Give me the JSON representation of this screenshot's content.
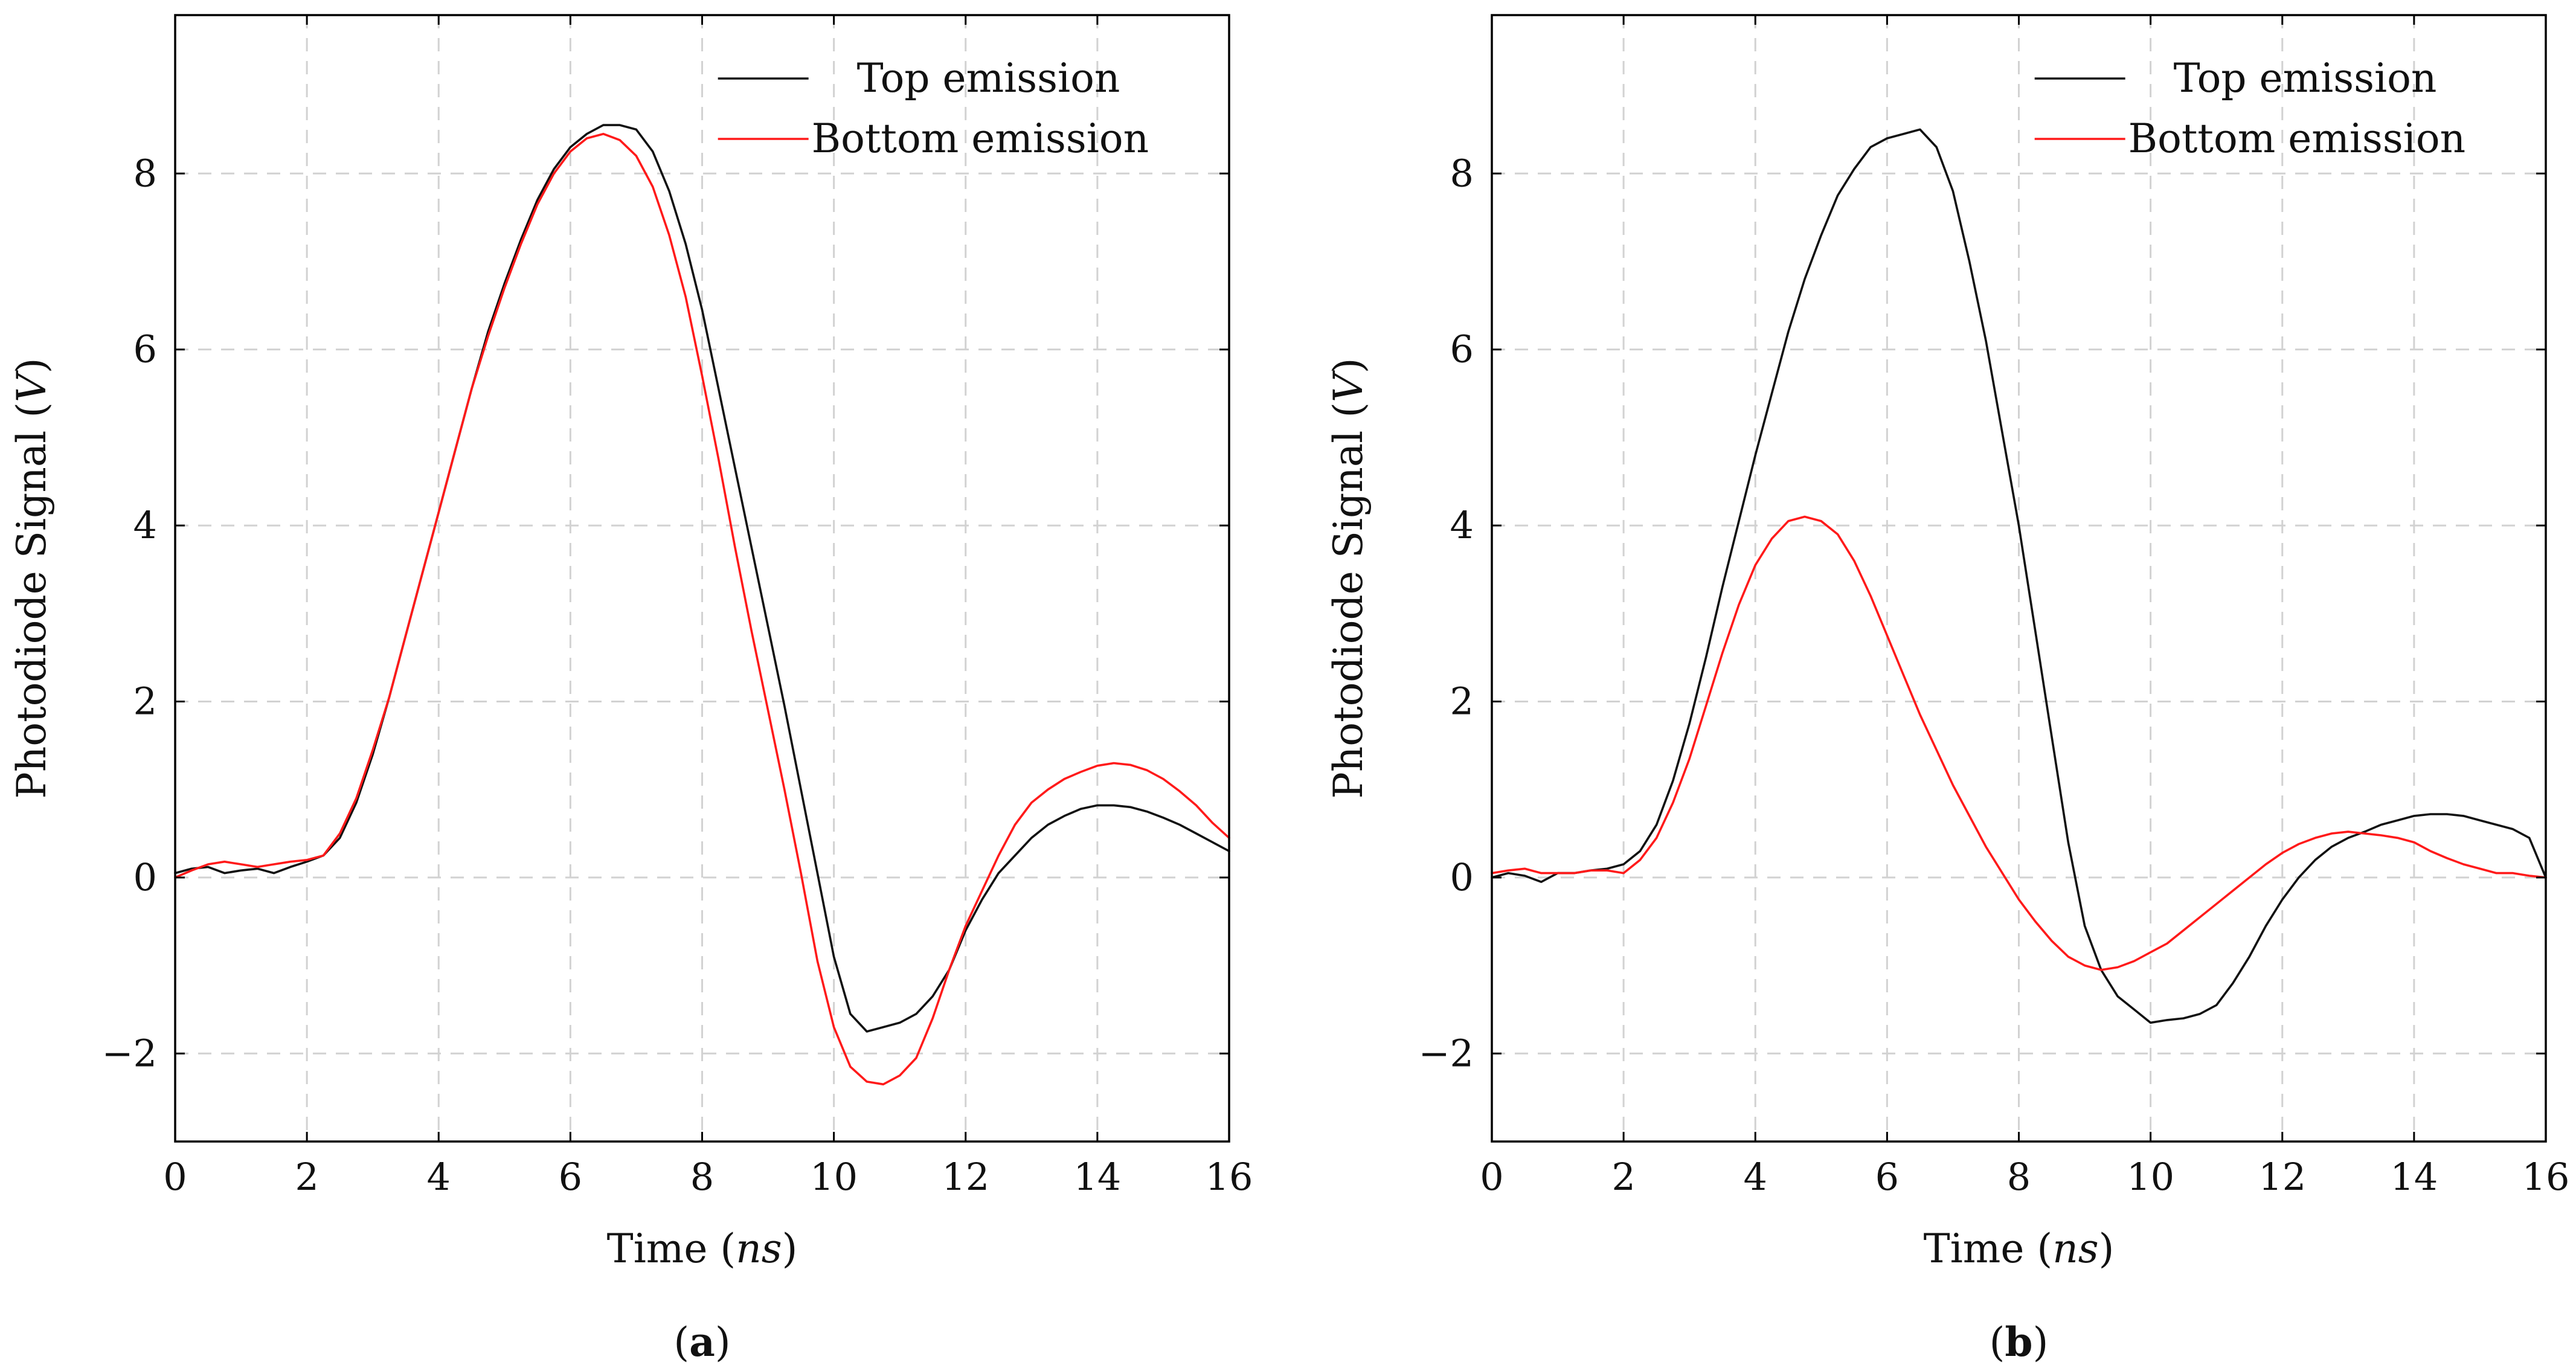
{
  "colors": {
    "top_emission": "#111111",
    "bottom_emission": "#ff1a1a",
    "grid": "#d2d2d2"
  },
  "chart_data": [
    {
      "type": "line",
      "panel_label": "a",
      "xlabel_prefix": "Time (",
      "xlabel_unit": "ns",
      "xlabel_suffix": ")",
      "ylabel_prefix": "Photodiode Signal (",
      "ylabel_unit": "V",
      "ylabel_suffix": ")",
      "xlim": [
        0,
        16
      ],
      "ylim": [
        -3,
        9.8
      ],
      "xticks": [
        0,
        2,
        4,
        6,
        8,
        10,
        12,
        14,
        16
      ],
      "yticks": [
        -2,
        0,
        2,
        4,
        6,
        8
      ],
      "ytick_labels": [
        "−2",
        "0",
        "2",
        "4",
        "6",
        "8"
      ],
      "grid": true,
      "legend_position": "top-right",
      "series": [
        {
          "name": "Top emission",
          "color": "#111111",
          "x": [
            0,
            0.25,
            0.5,
            0.75,
            1.0,
            1.25,
            1.5,
            1.75,
            2.0,
            2.25,
            2.5,
            2.75,
            3.0,
            3.25,
            3.5,
            3.75,
            4.0,
            4.25,
            4.5,
            4.75,
            5.0,
            5.25,
            5.5,
            5.75,
            6.0,
            6.25,
            6.5,
            6.75,
            7.0,
            7.25,
            7.5,
            7.75,
            8.0,
            8.25,
            8.5,
            8.75,
            9.0,
            9.25,
            9.5,
            9.75,
            10.0,
            10.25,
            10.5,
            10.75,
            11.0,
            11.25,
            11.5,
            11.75,
            12.0,
            12.25,
            12.5,
            12.75,
            13.0,
            13.25,
            13.5,
            13.75,
            14.0,
            14.25,
            14.5,
            14.75,
            15.0,
            15.25,
            15.5,
            15.75,
            16.0
          ],
          "y": [
            0.05,
            0.1,
            0.12,
            0.05,
            0.08,
            0.1,
            0.05,
            0.12,
            0.18,
            0.25,
            0.45,
            0.85,
            1.4,
            2.05,
            2.75,
            3.45,
            4.15,
            4.85,
            5.55,
            6.2,
            6.75,
            7.25,
            7.7,
            8.05,
            8.3,
            8.45,
            8.55,
            8.55,
            8.5,
            8.25,
            7.8,
            7.2,
            6.45,
            5.55,
            4.65,
            3.75,
            2.85,
            1.95,
            1.0,
            0.05,
            -0.9,
            -1.55,
            -1.75,
            -1.7,
            -1.65,
            -1.55,
            -1.35,
            -1.05,
            -0.6,
            -0.25,
            0.05,
            0.25,
            0.45,
            0.6,
            0.7,
            0.78,
            0.82,
            0.82,
            0.8,
            0.75,
            0.68,
            0.6,
            0.5,
            0.4,
            0.3
          ]
        },
        {
          "name": "Bottom emission",
          "color": "#ff1a1a",
          "x": [
            0,
            0.25,
            0.5,
            0.75,
            1.0,
            1.25,
            1.5,
            1.75,
            2.0,
            2.25,
            2.5,
            2.75,
            3.0,
            3.25,
            3.5,
            3.75,
            4.0,
            4.25,
            4.5,
            4.75,
            5.0,
            5.25,
            5.5,
            5.75,
            6.0,
            6.25,
            6.5,
            6.75,
            7.0,
            7.25,
            7.5,
            7.75,
            8.0,
            8.25,
            8.5,
            8.75,
            9.0,
            9.25,
            9.5,
            9.75,
            10.0,
            10.25,
            10.5,
            10.75,
            11.0,
            11.25,
            11.5,
            11.75,
            12.0,
            12.25,
            12.5,
            12.75,
            13.0,
            13.25,
            13.5,
            13.75,
            14.0,
            14.25,
            14.5,
            14.75,
            15.0,
            15.25,
            15.5,
            15.75,
            16.0
          ],
          "y": [
            0.0,
            0.08,
            0.15,
            0.18,
            0.15,
            0.12,
            0.15,
            0.18,
            0.2,
            0.25,
            0.5,
            0.9,
            1.45,
            2.05,
            2.75,
            3.45,
            4.15,
            4.85,
            5.55,
            6.15,
            6.7,
            7.2,
            7.65,
            8.0,
            8.25,
            8.4,
            8.45,
            8.38,
            8.2,
            7.85,
            7.3,
            6.6,
            5.7,
            4.75,
            3.75,
            2.8,
            1.9,
            1.0,
            0.05,
            -0.95,
            -1.7,
            -2.15,
            -2.32,
            -2.35,
            -2.25,
            -2.05,
            -1.6,
            -1.05,
            -0.55,
            -0.15,
            0.25,
            0.6,
            0.85,
            1.0,
            1.12,
            1.2,
            1.27,
            1.3,
            1.28,
            1.22,
            1.12,
            0.98,
            0.82,
            0.62,
            0.45
          ]
        }
      ]
    },
    {
      "type": "line",
      "panel_label": "b",
      "xlabel_prefix": "Time (",
      "xlabel_unit": "ns",
      "xlabel_suffix": ")",
      "ylabel_prefix": "Photodiode Signal (",
      "ylabel_unit": "V",
      "ylabel_suffix": ")",
      "xlim": [
        0,
        16
      ],
      "ylim": [
        -3,
        9.8
      ],
      "xticks": [
        0,
        2,
        4,
        6,
        8,
        10,
        12,
        14,
        16
      ],
      "yticks": [
        -2,
        0,
        2,
        4,
        6,
        8
      ],
      "ytick_labels": [
        "−2",
        "0",
        "2",
        "4",
        "6",
        "8"
      ],
      "grid": true,
      "legend_position": "top-right",
      "series": [
        {
          "name": "Top emission",
          "color": "#111111",
          "x": [
            0,
            0.25,
            0.5,
            0.75,
            1.0,
            1.25,
            1.5,
            1.75,
            2.0,
            2.25,
            2.5,
            2.75,
            3.0,
            3.25,
            3.5,
            3.75,
            4.0,
            4.25,
            4.5,
            4.75,
            5.0,
            5.25,
            5.5,
            5.75,
            6.0,
            6.25,
            6.5,
            6.75,
            7.0,
            7.25,
            7.5,
            7.75,
            8.0,
            8.25,
            8.5,
            8.75,
            9.0,
            9.25,
            9.5,
            9.75,
            10.0,
            10.25,
            10.5,
            10.75,
            11.0,
            11.25,
            11.5,
            11.75,
            12.0,
            12.25,
            12.5,
            12.75,
            13.0,
            13.25,
            13.5,
            13.75,
            14.0,
            14.25,
            14.5,
            14.75,
            15.0,
            15.25,
            15.5,
            15.75,
            16.0
          ],
          "y": [
            0.0,
            0.05,
            0.02,
            -0.05,
            0.05,
            0.05,
            0.08,
            0.1,
            0.15,
            0.3,
            0.6,
            1.1,
            1.75,
            2.5,
            3.3,
            4.05,
            4.8,
            5.5,
            6.2,
            6.8,
            7.3,
            7.75,
            8.05,
            8.3,
            8.4,
            8.45,
            8.5,
            8.3,
            7.8,
            7.0,
            6.1,
            5.05,
            4.0,
            2.8,
            1.6,
            0.4,
            -0.55,
            -1.05,
            -1.35,
            -1.5,
            -1.65,
            -1.62,
            -1.6,
            -1.55,
            -1.45,
            -1.2,
            -0.9,
            -0.55,
            -0.25,
            0.0,
            0.2,
            0.35,
            0.45,
            0.52,
            0.6,
            0.65,
            0.7,
            0.72,
            0.72,
            0.7,
            0.65,
            0.6,
            0.55,
            0.45,
            0.0
          ]
        },
        {
          "name": "Bottom emission",
          "color": "#ff1a1a",
          "x": [
            0,
            0.25,
            0.5,
            0.75,
            1.0,
            1.25,
            1.5,
            1.75,
            2.0,
            2.25,
            2.5,
            2.75,
            3.0,
            3.25,
            3.5,
            3.75,
            4.0,
            4.25,
            4.5,
            4.75,
            5.0,
            5.25,
            5.5,
            5.75,
            6.0,
            6.25,
            6.5,
            6.75,
            7.0,
            7.25,
            7.5,
            7.75,
            8.0,
            8.25,
            8.5,
            8.75,
            9.0,
            9.25,
            9.5,
            9.75,
            10.0,
            10.25,
            10.5,
            10.75,
            11.0,
            11.25,
            11.5,
            11.75,
            12.0,
            12.25,
            12.5,
            12.75,
            13.0,
            13.25,
            13.5,
            13.75,
            14.0,
            14.25,
            14.5,
            14.75,
            15.0,
            15.25,
            15.5,
            15.75,
            16.0
          ],
          "y": [
            0.05,
            0.08,
            0.1,
            0.05,
            0.05,
            0.05,
            0.08,
            0.08,
            0.05,
            0.2,
            0.45,
            0.85,
            1.35,
            1.95,
            2.55,
            3.1,
            3.55,
            3.85,
            4.05,
            4.1,
            4.05,
            3.9,
            3.6,
            3.2,
            2.75,
            2.3,
            1.85,
            1.45,
            1.05,
            0.7,
            0.35,
            0.05,
            -0.25,
            -0.5,
            -0.72,
            -0.9,
            -1.0,
            -1.05,
            -1.02,
            -0.95,
            -0.85,
            -0.75,
            -0.6,
            -0.45,
            -0.3,
            -0.15,
            0.0,
            0.15,
            0.28,
            0.38,
            0.45,
            0.5,
            0.52,
            0.5,
            0.48,
            0.45,
            0.4,
            0.3,
            0.22,
            0.15,
            0.1,
            0.05,
            0.05,
            0.02,
            0.0
          ]
        }
      ]
    }
  ]
}
